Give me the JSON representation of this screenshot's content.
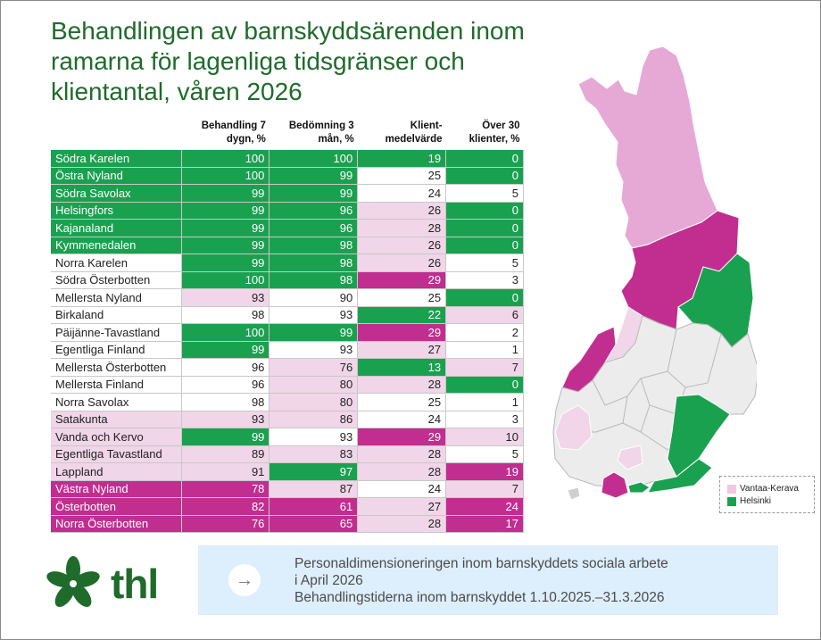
{
  "title": "Behandlingen av barnskyddsärenden inom ramarna för lagenliga tidsgränser och klientantal, våren 2026",
  "table": {
    "headers": [
      "",
      "Behandling 7 dygn, %",
      "Bedömning 3 mån, %",
      "Klient-medelvärde",
      "Över 30 klienter, %"
    ],
    "colors": {
      "green": "#1aa150",
      "light_pink": "#f0d6e8",
      "magenta": "#c12e8f",
      "white": "#ffffff"
    },
    "rows": [
      {
        "name": "Södra Karelen",
        "v": [
          "100",
          "100",
          "19",
          "0"
        ],
        "c": [
          "g",
          "g",
          "g",
          "g",
          "g"
        ]
      },
      {
        "name": "Östra Nyland",
        "v": [
          "100",
          "99",
          "25",
          "0"
        ],
        "c": [
          "g",
          "g",
          "g",
          "w",
          "g"
        ]
      },
      {
        "name": "Södra Savolax",
        "v": [
          "99",
          "99",
          "24",
          "5"
        ],
        "c": [
          "g",
          "g",
          "g",
          "w",
          "w"
        ]
      },
      {
        "name": "Helsingfors",
        "v": [
          "99",
          "96",
          "26",
          "0"
        ],
        "c": [
          "g",
          "g",
          "g",
          "p",
          "g"
        ]
      },
      {
        "name": "Kajanaland",
        "v": [
          "99",
          "96",
          "28",
          "0"
        ],
        "c": [
          "g",
          "g",
          "g",
          "p",
          "g"
        ]
      },
      {
        "name": "Kymmenedalen",
        "v": [
          "99",
          "98",
          "26",
          "0"
        ],
        "c": [
          "g",
          "g",
          "g",
          "p",
          "g"
        ]
      },
      {
        "name": "Norra Karelen",
        "v": [
          "99",
          "98",
          "26",
          "5"
        ],
        "c": [
          "w",
          "g",
          "g",
          "p",
          "w"
        ]
      },
      {
        "name": "Södra Österbotten",
        "v": [
          "100",
          "98",
          "29",
          "3"
        ],
        "c": [
          "w",
          "g",
          "g",
          "m",
          "w"
        ]
      },
      {
        "name": "Mellersta Nyland",
        "v": [
          "93",
          "90",
          "25",
          "0"
        ],
        "c": [
          "w",
          "p",
          "w",
          "w",
          "g"
        ]
      },
      {
        "name": "Birkaland",
        "v": [
          "98",
          "93",
          "22",
          "6"
        ],
        "c": [
          "w",
          "w",
          "w",
          "g",
          "p"
        ]
      },
      {
        "name": "Päijänne-Tavastland",
        "v": [
          "100",
          "99",
          "29",
          "2"
        ],
        "c": [
          "w",
          "g",
          "g",
          "m",
          "w"
        ]
      },
      {
        "name": "Egentliga Finland",
        "v": [
          "99",
          "93",
          "27",
          "1"
        ],
        "c": [
          "w",
          "g",
          "w",
          "p",
          "w"
        ]
      },
      {
        "name": "Mellersta Österbotten",
        "v": [
          "96",
          "76",
          "13",
          "7"
        ],
        "c": [
          "w",
          "w",
          "p",
          "g",
          "p"
        ]
      },
      {
        "name": "Mellersta Finland",
        "v": [
          "96",
          "80",
          "28",
          "0"
        ],
        "c": [
          "w",
          "w",
          "p",
          "p",
          "g"
        ]
      },
      {
        "name": "Norra Savolax",
        "v": [
          "98",
          "80",
          "25",
          "1"
        ],
        "c": [
          "w",
          "w",
          "p",
          "w",
          "w"
        ]
      },
      {
        "name": "Satakunta",
        "v": [
          "93",
          "86",
          "24",
          "3"
        ],
        "c": [
          "p",
          "p",
          "p",
          "w",
          "w"
        ]
      },
      {
        "name": "Vanda och Kervo",
        "v": [
          "99",
          "93",
          "29",
          "10"
        ],
        "c": [
          "p",
          "g",
          "w",
          "m",
          "p"
        ]
      },
      {
        "name": "Egentliga Tavastland",
        "v": [
          "89",
          "83",
          "28",
          "5"
        ],
        "c": [
          "p",
          "p",
          "p",
          "p",
          "w"
        ]
      },
      {
        "name": "Lappland",
        "v": [
          "91",
          "97",
          "28",
          "19"
        ],
        "c": [
          "p",
          "p",
          "g",
          "p",
          "m"
        ]
      },
      {
        "name": "Västra Nyland",
        "v": [
          "78",
          "87",
          "24",
          "7"
        ],
        "c": [
          "m",
          "m",
          "p",
          "w",
          "p"
        ]
      },
      {
        "name": "Österbotten",
        "v": [
          "82",
          "61",
          "27",
          "24"
        ],
        "c": [
          "m",
          "m",
          "m",
          "p",
          "m"
        ]
      },
      {
        "name": "Norra Österbotten",
        "v": [
          "76",
          "65",
          "28",
          "17"
        ],
        "c": [
          "m",
          "m",
          "m",
          "p",
          "m"
        ]
      }
    ]
  },
  "map": {
    "legend": [
      {
        "label": "Vantaa-Kerava",
        "color": "#f0c8e0"
      },
      {
        "label": "Helsinki",
        "color": "#1aa150"
      }
    ]
  },
  "logo": {
    "text": "thl"
  },
  "banner": {
    "arrow_icon": "→",
    "lines": [
      "Personaldimensioneringen inom barnskyddets sociala arbete",
      "i April 2026",
      "Behandlingstiderna inom barnskyddet 1.10.2025.–31.3.2026"
    ]
  },
  "chart_data": {
    "type": "table",
    "title": "Behandlingen av barnskyddsärenden inom ramarna för lagenliga tidsgränser och klientantal, våren 2026",
    "columns": [
      "Behandling 7 dygn, %",
      "Bedömning 3 mån, %",
      "Klient-medelvärde",
      "Över 30 klienter, %"
    ],
    "rows": [
      [
        "Södra Karelen",
        100,
        100,
        19,
        0
      ],
      [
        "Östra Nyland",
        100,
        99,
        25,
        0
      ],
      [
        "Södra Savolax",
        99,
        99,
        24,
        5
      ],
      [
        "Helsingfors",
        99,
        96,
        26,
        0
      ],
      [
        "Kajanaland",
        99,
        96,
        28,
        0
      ],
      [
        "Kymmenedalen",
        99,
        98,
        26,
        0
      ],
      [
        "Norra Karelen",
        99,
        98,
        26,
        5
      ],
      [
        "Södra Österbotten",
        100,
        98,
        29,
        3
      ],
      [
        "Mellersta Nyland",
        93,
        90,
        25,
        0
      ],
      [
        "Birkaland",
        98,
        93,
        22,
        6
      ],
      [
        "Päijänne-Tavastland",
        100,
        99,
        29,
        2
      ],
      [
        "Egentliga Finland",
        99,
        93,
        27,
        1
      ],
      [
        "Mellersta Österbotten",
        96,
        76,
        13,
        7
      ],
      [
        "Mellersta Finland",
        96,
        80,
        28,
        0
      ],
      [
        "Norra Savolax",
        98,
        80,
        25,
        1
      ],
      [
        "Satakunta",
        93,
        86,
        24,
        3
      ],
      [
        "Vanda och Kervo",
        99,
        93,
        29,
        10
      ],
      [
        "Egentliga Tavastland",
        89,
        83,
        28,
        5
      ],
      [
        "Lappland",
        91,
        97,
        28,
        19
      ],
      [
        "Västra Nyland",
        78,
        87,
        24,
        7
      ],
      [
        "Österbotten",
        82,
        61,
        27,
        24
      ],
      [
        "Norra Österbotten",
        76,
        65,
        28,
        17
      ]
    ]
  }
}
